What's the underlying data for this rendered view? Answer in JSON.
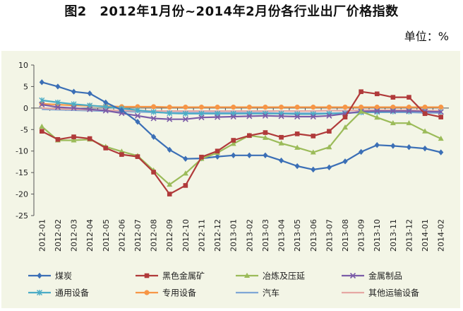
{
  "title": "图2　2012年1月份~2014年2月份各行业出厂价格指数",
  "unit": "单位：%",
  "chart_data": {
    "type": "line",
    "ylim": [
      -25,
      10
    ],
    "yticks": [
      10,
      5,
      0,
      -5,
      -10,
      -15,
      -20,
      -25
    ],
    "grid": false,
    "legend": "bottom",
    "categories": [
      "2012-01",
      "2012-02",
      "2012-03",
      "2012-04",
      "2012-05",
      "2012-06",
      "2012-07",
      "2012-08",
      "2012-09",
      "2012-10",
      "2012-11",
      "2012-12",
      "2013-01",
      "2013-02",
      "2013-03",
      "2013-04",
      "2013-05",
      "2013-06",
      "2013-07",
      "2013-08",
      "2013-09",
      "2013-10",
      "2013-11",
      "2013-12",
      "2014-01",
      "2014-02"
    ],
    "series": [
      {
        "name": "煤炭",
        "color": "#3b6fb6",
        "marker": "diamond",
        "values": [
          6,
          5,
          3.8,
          3.4,
          1.3,
          -0.5,
          -3.2,
          -6.7,
          -9.7,
          -11.8,
          -11.7,
          -11.3,
          -11.0,
          -11.0,
          -11.0,
          -12.2,
          -13.5,
          -14.3,
          -13.8,
          -12.4,
          -10.2,
          -8.6,
          -8.8,
          -9.1,
          -9.4,
          -10.3
        ]
      },
      {
        "name": "黑色金属矿",
        "color": "#b03a3a",
        "marker": "square",
        "values": [
          -5.4,
          -7.3,
          -6.7,
          -7.1,
          -9.3,
          -10.8,
          -11.3,
          -14.9,
          -20,
          -18.0,
          -11.4,
          -10.0,
          -7.5,
          -6.4,
          -5.7,
          -6.8,
          -6.0,
          -6.5,
          -5.4,
          -2.1,
          3.8,
          3.3,
          2.5,
          2.5,
          -1.3,
          -2.1
        ]
      },
      {
        "name": "冶炼及压延",
        "color": "#9bbb59",
        "marker": "triangle",
        "values": [
          -4.3,
          -7.5,
          -7.5,
          -7.3,
          -9.0,
          -10.1,
          -11.1,
          -14.5,
          -17.8,
          -15.2,
          -11.8,
          -10.4,
          -8.3,
          -6.4,
          -6.9,
          -8.2,
          -9.2,
          -10.3,
          -9.1,
          -4.5,
          -0.8,
          -2.2,
          -3.5,
          -3.5,
          -5.4,
          -7.1
        ]
      },
      {
        "name": "金属制品",
        "color": "#7b5ca8",
        "marker": "x",
        "values": [
          0.8,
          0.2,
          0.0,
          -0.3,
          -0.6,
          -1.2,
          -1.8,
          -2.4,
          -2.6,
          -2.6,
          -2.2,
          -2.1,
          -2.0,
          -1.9,
          -1.8,
          -1.9,
          -2.0,
          -2.0,
          -1.8,
          -1.3,
          -0.8,
          -0.7,
          -0.7,
          -0.7,
          -0.8,
          -0.9
        ]
      },
      {
        "name": "通用设备",
        "color": "#4bacc6",
        "marker": "star",
        "values": [
          1.8,
          1.3,
          0.9,
          0.6,
          0.3,
          -0.1,
          -0.5,
          -0.9,
          -1.2,
          -1.3,
          -1.3,
          -1.3,
          -1.3,
          -1.3,
          -1.3,
          -1.3,
          -1.4,
          -1.4,
          -1.3,
          -1.2,
          -1.0,
          -0.9,
          -0.8,
          -0.8,
          -0.8,
          -0.9
        ]
      },
      {
        "name": "专用设备",
        "color": "#f79646",
        "marker": "circle",
        "values": [
          1.0,
          0.8,
          0.6,
          0.5,
          0.4,
          0.3,
          0.3,
          0.3,
          0.2,
          0.2,
          0.2,
          0.2,
          0.2,
          0.2,
          0.2,
          0.2,
          0.2,
          0.2,
          0.2,
          0.2,
          0.2,
          0.2,
          0.2,
          0.2,
          0.2,
          0.2
        ]
      },
      {
        "name": "汽车",
        "color": "#7fa7d6",
        "marker": "none",
        "values": [
          -0.3,
          -0.4,
          -0.5,
          -0.6,
          -0.7,
          -0.8,
          -0.9,
          -1.0,
          -1.1,
          -1.1,
          -1.1,
          -1.1,
          -1.1,
          -1.1,
          -1.1,
          -1.2,
          -1.2,
          -1.2,
          -1.2,
          -1.1,
          -1.0,
          -1.0,
          -1.0,
          -1.0,
          -1.1,
          -1.1
        ]
      },
      {
        "name": "其他运输设备",
        "color": "#e6a8a3",
        "marker": "none",
        "values": [
          0.0,
          -0.2,
          -0.3,
          -0.4,
          -0.5,
          -0.6,
          -0.6,
          -0.7,
          -0.7,
          -0.7,
          -0.7,
          -0.7,
          -0.7,
          -0.7,
          -0.7,
          -0.7,
          -0.7,
          -0.7,
          -0.6,
          -0.6,
          -0.5,
          -0.5,
          -0.5,
          -0.5,
          -0.6,
          -0.6
        ]
      }
    ]
  }
}
